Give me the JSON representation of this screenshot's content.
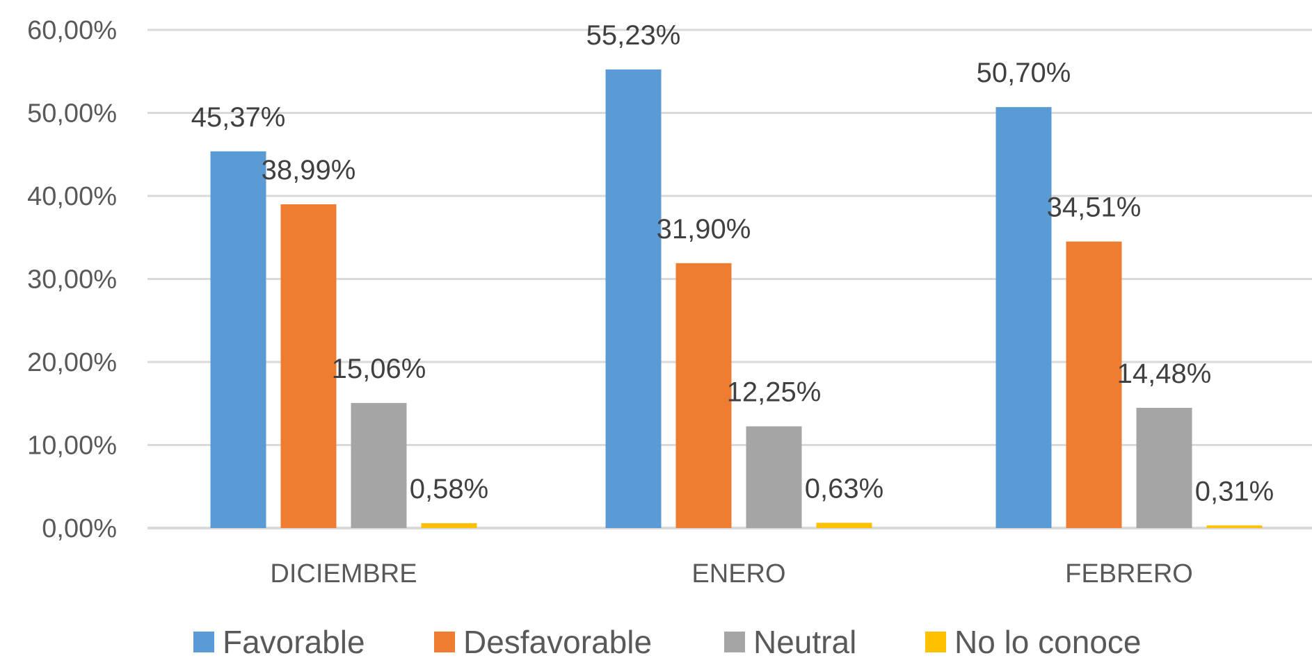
{
  "chart_data": {
    "type": "bar",
    "title": "",
    "xlabel": "",
    "ylabel": "",
    "categories": [
      "DICIEMBRE",
      "ENERO",
      "FEBRERO"
    ],
    "series": [
      {
        "name": "Favorable",
        "color": "#5B9BD5",
        "values": [
          45.37,
          55.23,
          50.7
        ],
        "labels": [
          "45,37%",
          "55,23%",
          "50,70%"
        ]
      },
      {
        "name": "Desfavorable",
        "color": "#ED7D31",
        "values": [
          38.99,
          31.9,
          34.51
        ],
        "labels": [
          "38,99%",
          "31,90%",
          "34,51%"
        ]
      },
      {
        "name": "Neutral",
        "color": "#A5A5A5",
        "values": [
          15.06,
          12.25,
          14.48
        ],
        "labels": [
          "15,06%",
          "12,25%",
          "14,48%"
        ]
      },
      {
        "name": "No lo conoce",
        "color": "#FFC000",
        "values": [
          0.58,
          0.63,
          0.31
        ],
        "labels": [
          "0,58%",
          "0,63%",
          "0,31%"
        ]
      }
    ],
    "ylim": [
      0,
      60
    ],
    "yticks": [
      {
        "value": 0,
        "label": "0,00%"
      },
      {
        "value": 10,
        "label": "10,00%"
      },
      {
        "value": 20,
        "label": "20,00%"
      },
      {
        "value": 30,
        "label": "30,00%"
      },
      {
        "value": 40,
        "label": "40,00%"
      },
      {
        "value": 50,
        "label": "50,00%"
      },
      {
        "value": 60,
        "label": "60,00%"
      }
    ],
    "grid": true,
    "legend_position": "bottom",
    "gridline_color": "#D9D9D9"
  }
}
